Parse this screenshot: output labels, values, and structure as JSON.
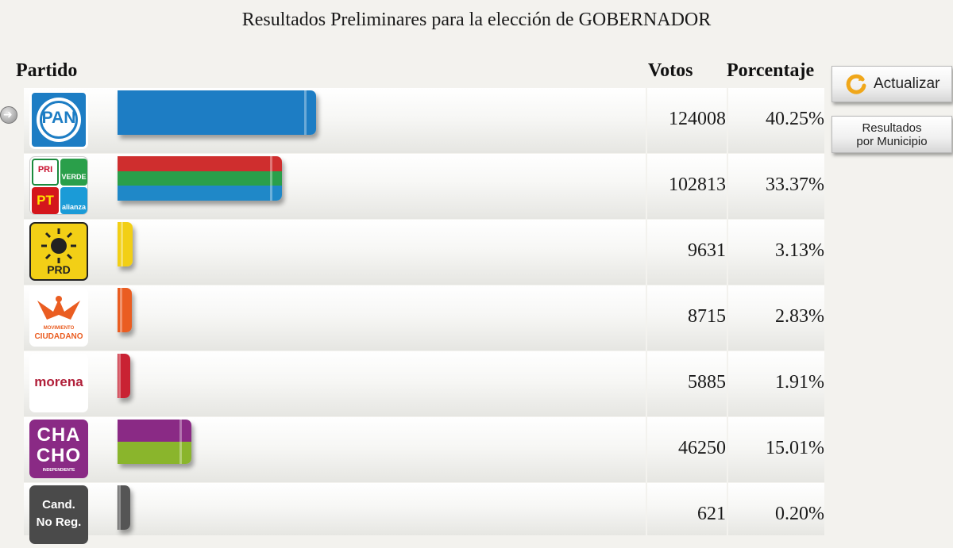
{
  "title": "Resultados Preliminares para la elección de GOBERNADOR",
  "headers": {
    "partido": "Partido",
    "votos": "Votos",
    "porcentaje": "Porcentaje"
  },
  "buttons": {
    "actualizar": "Actualizar",
    "municipio_line1": "Resultados",
    "municipio_line2": "por Municipio"
  },
  "logo_text": {
    "pan": "PAN",
    "coalition_pri": "PRI",
    "coalition_verde": "VERDE",
    "coalition_pt": "PT",
    "coalition_alianza": "alianza",
    "prd": "PRD",
    "mc_line1": "MOVIMIENTO",
    "mc_line2": "CIUDADANO",
    "morena": "morena",
    "chacho_line1": "CHA",
    "chacho_line2": "CHO",
    "chacho_sub": "INDEPENDIENTE",
    "cand_line1": "Cand.",
    "cand_line2": "No Reg."
  },
  "chart_data": {
    "type": "bar",
    "title": "Resultados Preliminares para la elección de GOBERNADOR",
    "categories": [
      "PAN",
      "PRI-VERDE-PT-ALIANZA",
      "PRD",
      "MOVIMIENTO CIUDADANO",
      "MORENA",
      "CHACHO (Independiente)",
      "Cand. No Reg."
    ],
    "votes": [
      124008,
      102813,
      9631,
      8715,
      5885,
      46250,
      621
    ],
    "values": [
      40.25,
      33.37,
      3.13,
      2.83,
      1.91,
      15.01,
      0.2
    ],
    "votes_text": [
      "124008",
      "102813",
      "9631",
      "8715",
      "5885",
      "46250",
      "621"
    ],
    "percent_text": [
      "40.25%",
      "33.37%",
      "3.13%",
      "2.83%",
      "1.91%",
      "15.01%",
      "0.20%"
    ],
    "bar_colors": [
      [
        "#1d7dc4"
      ],
      [
        "#cf2e2e",
        "#2a9f4a",
        "#1f88c8"
      ],
      [
        "#f2cf16"
      ],
      [
        "#ea5d21"
      ],
      [
        "#c92233"
      ],
      [
        "#8a2a85",
        "#8ab52c"
      ],
      [
        "#555555"
      ]
    ],
    "xlabel": "",
    "ylabel": ""
  }
}
